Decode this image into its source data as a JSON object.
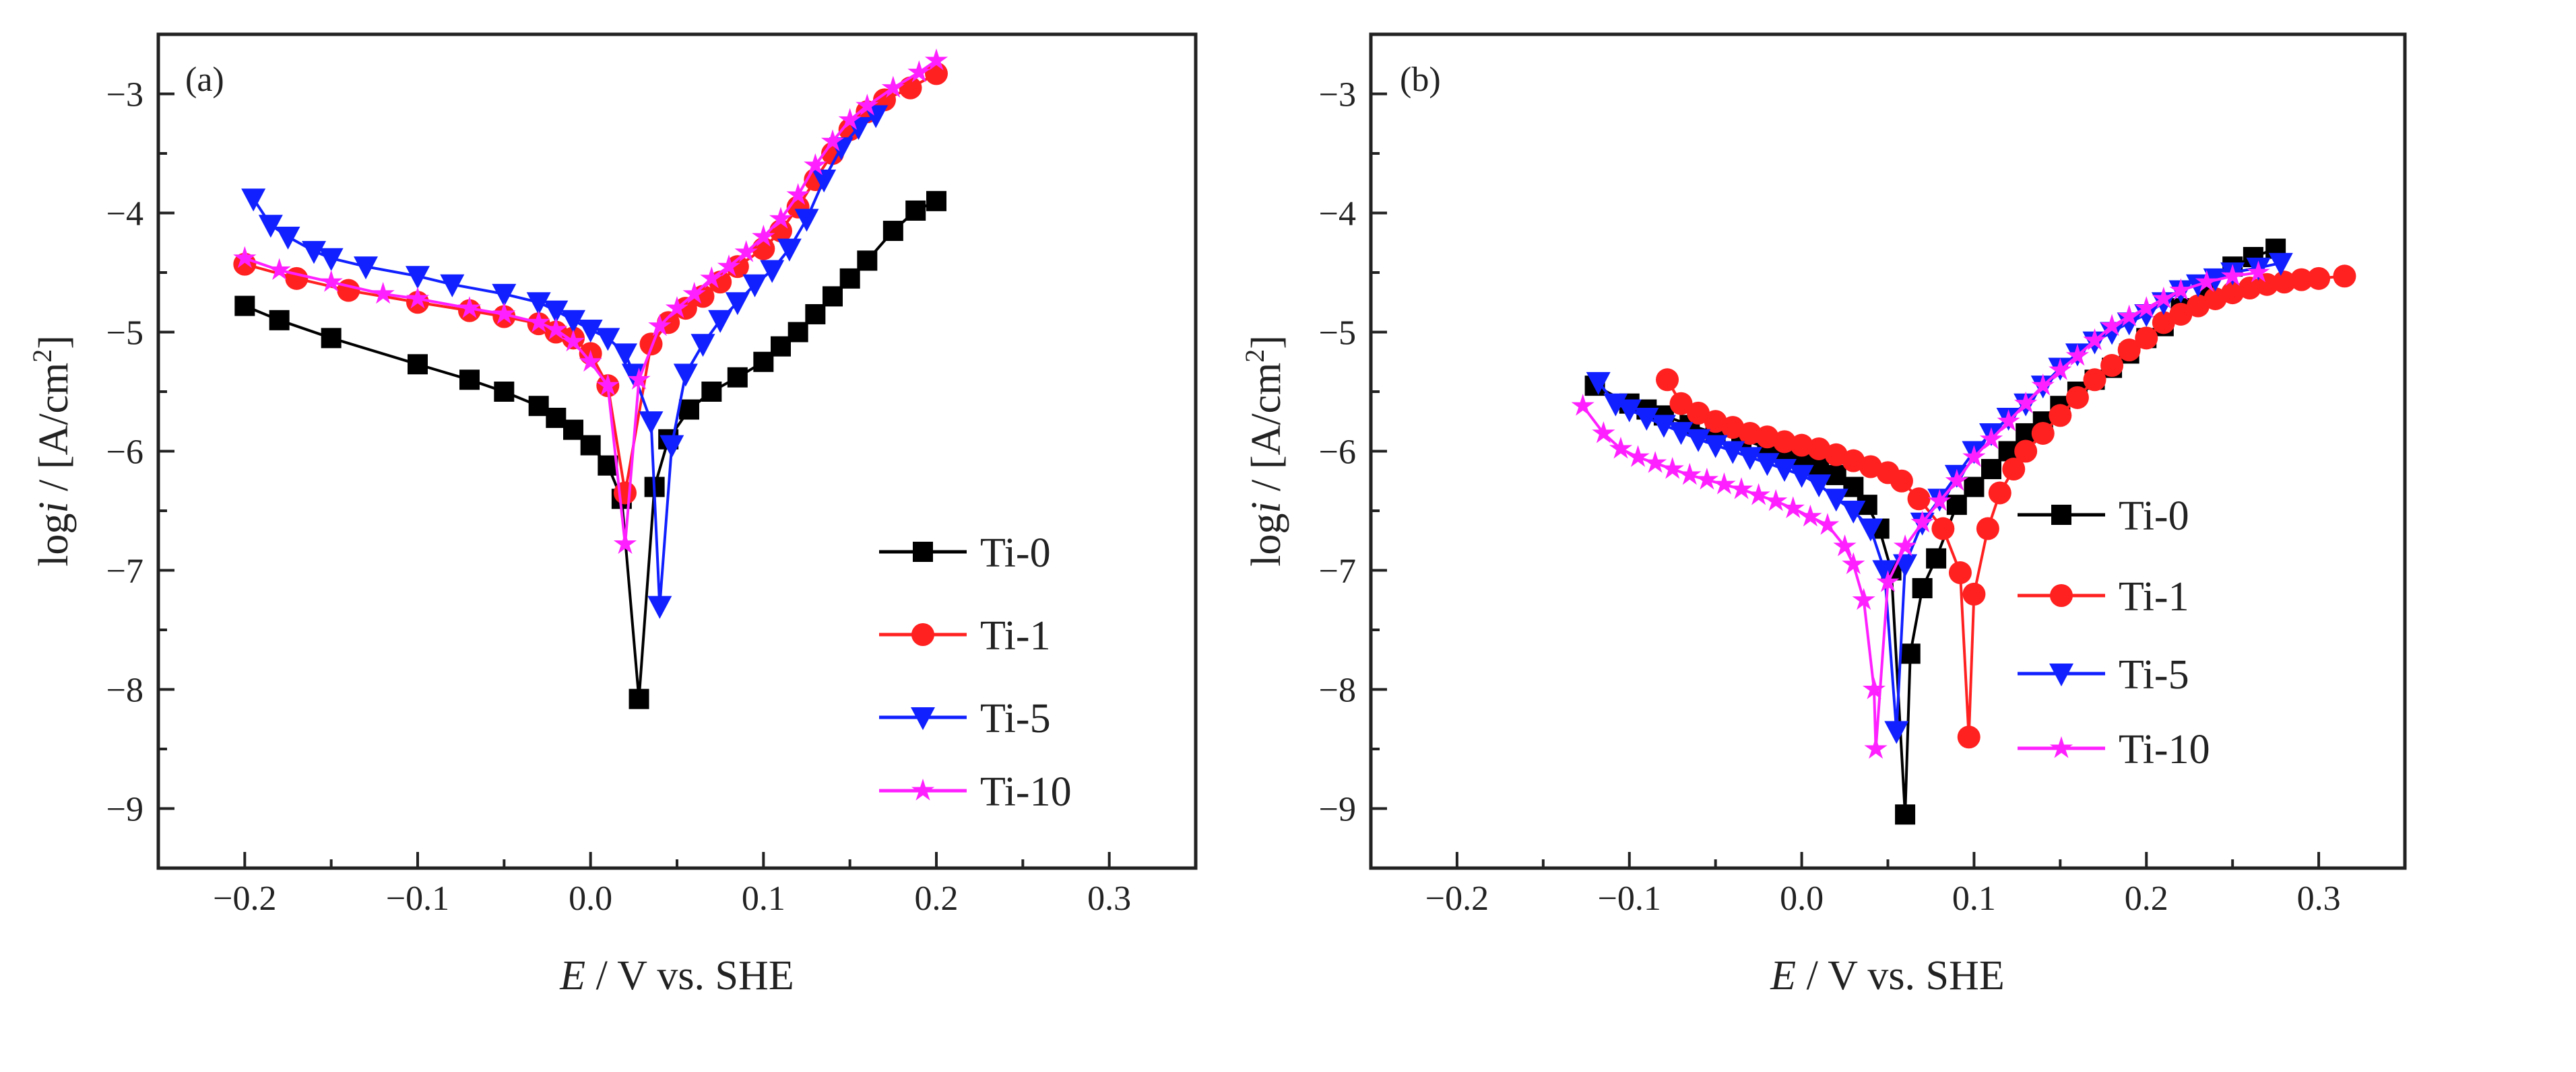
{
  "colors": {
    "Ti-0": "#000000",
    "Ti-1": "#ff2020",
    "Ti-5": "#1020ff",
    "Ti-10": "#ff20ff"
  },
  "chart_data": [
    {
      "type": "line",
      "panel_label": "(a)",
      "xlabel": {
        "italic": "E",
        "rest": " / V vs. SHE"
      },
      "ylabel": {
        "prefix": "log",
        "italic": "i",
        "mid": " / [A/cm",
        "sup": "2",
        "close": "]"
      },
      "xlim": [
        -0.25,
        0.35
      ],
      "ylim": [
        -9.5,
        -2.5
      ],
      "xticks": [
        -0.2,
        -0.1,
        0.0,
        0.1,
        0.2,
        0.3
      ],
      "xtick_labels": [
        "−0.2",
        "−0.1",
        "0.0",
        "0.1",
        "0.2",
        "0.3"
      ],
      "yticks": [
        -9,
        -8,
        -7,
        -6,
        -5,
        -4,
        -3
      ],
      "ytick_labels": [
        "−9",
        "−8",
        "−7",
        "−6",
        "−5",
        "−4",
        "−3"
      ],
      "legend_position": "bottom-right",
      "series": [
        {
          "name": "Ti-0",
          "marker": "square",
          "x": [
            -0.2,
            -0.18,
            -0.15,
            -0.1,
            -0.07,
            -0.05,
            -0.03,
            -0.02,
            -0.01,
            0,
            0.01,
            0.018,
            0.028,
            0.037,
            0.045,
            0.057,
            0.07,
            0.085,
            0.1,
            0.11,
            0.12,
            0.13,
            0.14,
            0.15,
            0.16,
            0.175,
            0.188,
            0.2
          ],
          "y": [
            -4.78,
            -4.9,
            -5.05,
            -5.27,
            -5.4,
            -5.5,
            -5.62,
            -5.72,
            -5.82,
            -5.95,
            -6.12,
            -6.4,
            -8.08,
            -6.3,
            -5.9,
            -5.65,
            -5.5,
            -5.38,
            -5.25,
            -5.12,
            -5.0,
            -4.85,
            -4.7,
            -4.55,
            -4.4,
            -4.15,
            -3.98,
            -3.9
          ]
        },
        {
          "name": "Ti-1",
          "marker": "circle",
          "x": [
            -0.2,
            -0.17,
            -0.14,
            -0.1,
            -0.07,
            -0.05,
            -0.03,
            -0.02,
            -0.01,
            0,
            0.01,
            0.02,
            0.035,
            0.045,
            0.055,
            0.065,
            0.075,
            0.085,
            0.1,
            0.11,
            0.12,
            0.13,
            0.14,
            0.15,
            0.16,
            0.17,
            0.185,
            0.2
          ],
          "y": [
            -4.43,
            -4.55,
            -4.65,
            -4.75,
            -4.82,
            -4.87,
            -4.93,
            -5.0,
            -5.05,
            -5.18,
            -5.45,
            -6.35,
            -5.1,
            -4.92,
            -4.8,
            -4.7,
            -4.58,
            -4.45,
            -4.3,
            -4.15,
            -3.95,
            -3.72,
            -3.5,
            -3.3,
            -3.15,
            -3.05,
            -2.95,
            -2.83
          ]
        },
        {
          "name": "Ti-5",
          "marker": "triangle-down",
          "x": [
            -0.195,
            -0.185,
            -0.175,
            -0.16,
            -0.15,
            -0.13,
            -0.1,
            -0.08,
            -0.05,
            -0.03,
            -0.02,
            -0.01,
            0,
            0.01,
            0.02,
            0.025,
            0.035,
            0.04,
            0.047,
            0.055,
            0.065,
            0.075,
            0.085,
            0.095,
            0.105,
            0.115,
            0.125,
            0.135,
            0.145,
            0.155,
            0.165
          ],
          "y": [
            -3.88,
            -4.1,
            -4.2,
            -4.32,
            -4.38,
            -4.45,
            -4.53,
            -4.6,
            -4.68,
            -4.75,
            -4.82,
            -4.9,
            -4.98,
            -5.05,
            -5.18,
            -5.35,
            -5.75,
            -7.3,
            -5.95,
            -5.35,
            -5.1,
            -4.9,
            -4.75,
            -4.6,
            -4.48,
            -4.3,
            -4.05,
            -3.72,
            -3.45,
            -3.28,
            -3.18
          ]
        },
        {
          "name": "Ti-10",
          "marker": "star",
          "x": [
            -0.2,
            -0.18,
            -0.15,
            -0.12,
            -0.1,
            -0.07,
            -0.05,
            -0.03,
            -0.02,
            -0.01,
            0,
            0.01,
            0.02,
            0.028,
            0.04,
            0.05,
            0.06,
            0.07,
            0.08,
            0.09,
            0.1,
            0.11,
            0.12,
            0.13,
            0.14,
            0.15,
            0.16,
            0.175,
            0.19,
            0.2
          ],
          "y": [
            -4.38,
            -4.48,
            -4.58,
            -4.68,
            -4.72,
            -4.8,
            -4.85,
            -4.92,
            -4.98,
            -5.08,
            -5.25,
            -5.45,
            -6.78,
            -5.4,
            -4.95,
            -4.8,
            -4.68,
            -4.55,
            -4.45,
            -4.33,
            -4.2,
            -4.05,
            -3.85,
            -3.6,
            -3.4,
            -3.22,
            -3.1,
            -2.95,
            -2.82,
            -2.72
          ]
        }
      ]
    },
    {
      "type": "line",
      "panel_label": "(b)",
      "xlabel": {
        "italic": "E",
        "rest": " / V vs. SHE"
      },
      "ylabel": {
        "prefix": "log",
        "italic": "i",
        "mid": " / [A/cm",
        "sup": "2",
        "close": "]"
      },
      "xlim": [
        -0.25,
        0.35
      ],
      "ylim": [
        -9.5,
        -2.5
      ],
      "xticks": [
        -0.2,
        -0.1,
        0.0,
        0.1,
        0.2,
        0.3
      ],
      "xtick_labels": [
        "−0.2",
        "−0.1",
        "0.0",
        "0.1",
        "0.2",
        "0.3"
      ],
      "yticks": [
        -9,
        -8,
        -7,
        -6,
        -5,
        -4,
        -3
      ],
      "ytick_labels": [
        "−9",
        "−8",
        "−7",
        "−6",
        "−5",
        "−4",
        "−3"
      ],
      "legend_position": "bottom-right",
      "series": [
        {
          "name": "Ti-0",
          "marker": "square",
          "x": [
            -0.12,
            -0.1,
            -0.09,
            -0.08,
            -0.065,
            -0.05,
            -0.035,
            -0.02,
            -0.01,
            0,
            0.01,
            0.02,
            0.03,
            0.038,
            0.045,
            0.052,
            0.06,
            0.063,
            0.07,
            0.078,
            0.09,
            0.1,
            0.11,
            0.12,
            0.13,
            0.14,
            0.15,
            0.16,
            0.17,
            0.18,
            0.19,
            0.2,
            0.21,
            0.22,
            0.235,
            0.25,
            0.262,
            0.275
          ],
          "y": [
            -5.45,
            -5.6,
            -5.65,
            -5.7,
            -5.78,
            -5.85,
            -5.9,
            -5.97,
            -6.0,
            -6.05,
            -6.12,
            -6.2,
            -6.3,
            -6.45,
            -6.65,
            -7.0,
            -9.05,
            -7.7,
            -7.15,
            -6.9,
            -6.45,
            -6.3,
            -6.15,
            -6.0,
            -5.85,
            -5.75,
            -5.62,
            -5.5,
            -5.4,
            -5.3,
            -5.18,
            -5.05,
            -4.95,
            -4.8,
            -4.65,
            -4.45,
            -4.37,
            -4.3
          ]
        },
        {
          "name": "Ti-1",
          "marker": "circle",
          "x": [
            -0.078,
            -0.07,
            -0.06,
            -0.05,
            -0.04,
            -0.03,
            -0.02,
            -0.01,
            0,
            0.01,
            0.02,
            0.03,
            0.04,
            0.05,
            0.058,
            0.068,
            0.082,
            0.092,
            0.097,
            0.1,
            0.108,
            0.115,
            0.123,
            0.13,
            0.14,
            0.15,
            0.16,
            0.17,
            0.18,
            0.19,
            0.2,
            0.21,
            0.22,
            0.23,
            0.24,
            0.25,
            0.26,
            0.27,
            0.28,
            0.29,
            0.3,
            0.315
          ],
          "y": [
            -5.4,
            -5.6,
            -5.68,
            -5.75,
            -5.8,
            -5.85,
            -5.88,
            -5.92,
            -5.95,
            -5.98,
            -6.03,
            -6.08,
            -6.13,
            -6.18,
            -6.25,
            -6.4,
            -6.65,
            -7.02,
            -8.4,
            -7.2,
            -6.65,
            -6.35,
            -6.15,
            -6.0,
            -5.85,
            -5.7,
            -5.55,
            -5.4,
            -5.28,
            -5.15,
            -5.05,
            -4.92,
            -4.85,
            -4.78,
            -4.72,
            -4.67,
            -4.63,
            -4.6,
            -4.58,
            -4.56,
            -4.55,
            -4.53
          ]
        },
        {
          "name": "Ti-5",
          "marker": "triangle-down",
          "x": [
            -0.118,
            -0.108,
            -0.1,
            -0.09,
            -0.08,
            -0.07,
            -0.06,
            -0.05,
            -0.04,
            -0.03,
            -0.02,
            -0.01,
            0,
            0.01,
            0.02,
            0.03,
            0.04,
            0.048,
            0.055,
            0.06,
            0.07,
            0.08,
            0.09,
            0.1,
            0.11,
            0.12,
            0.13,
            0.14,
            0.15,
            0.16,
            0.17,
            0.18,
            0.19,
            0.2,
            0.21,
            0.22,
            0.23,
            0.24,
            0.25,
            0.265,
            0.278
          ],
          "y": [
            -5.42,
            -5.6,
            -5.65,
            -5.72,
            -5.78,
            -5.84,
            -5.9,
            -5.95,
            -6.0,
            -6.05,
            -6.1,
            -6.15,
            -6.2,
            -6.28,
            -6.4,
            -6.5,
            -6.65,
            -7.0,
            -8.35,
            -6.95,
            -6.6,
            -6.4,
            -6.2,
            -6.0,
            -5.85,
            -5.72,
            -5.6,
            -5.45,
            -5.3,
            -5.18,
            -5.08,
            -5.0,
            -4.92,
            -4.85,
            -4.75,
            -4.65,
            -4.6,
            -4.55,
            -4.5,
            -4.46,
            -4.42
          ]
        },
        {
          "name": "Ti-10",
          "marker": "star",
          "x": [
            -0.127,
            -0.115,
            -0.105,
            -0.095,
            -0.085,
            -0.075,
            -0.065,
            -0.055,
            -0.045,
            -0.035,
            -0.025,
            -0.015,
            -0.005,
            0.005,
            0.015,
            0.025,
            0.03,
            0.036,
            0.042,
            0.043,
            0.05,
            0.06,
            0.07,
            0.08,
            0.09,
            0.1,
            0.11,
            0.12,
            0.13,
            0.14,
            0.15,
            0.16,
            0.17,
            0.18,
            0.19,
            0.2,
            0.21,
            0.22,
            0.235,
            0.25,
            0.265
          ],
          "y": [
            -5.62,
            -5.85,
            -5.98,
            -6.05,
            -6.1,
            -6.15,
            -6.2,
            -6.24,
            -6.28,
            -6.32,
            -6.37,
            -6.42,
            -6.48,
            -6.55,
            -6.62,
            -6.8,
            -6.95,
            -7.25,
            -8.0,
            -8.5,
            -7.1,
            -6.8,
            -6.6,
            -6.42,
            -6.25,
            -6.05,
            -5.9,
            -5.75,
            -5.6,
            -5.45,
            -5.32,
            -5.2,
            -5.07,
            -4.95,
            -4.87,
            -4.8,
            -4.72,
            -4.65,
            -4.58,
            -4.53,
            -4.5
          ]
        }
      ]
    }
  ]
}
